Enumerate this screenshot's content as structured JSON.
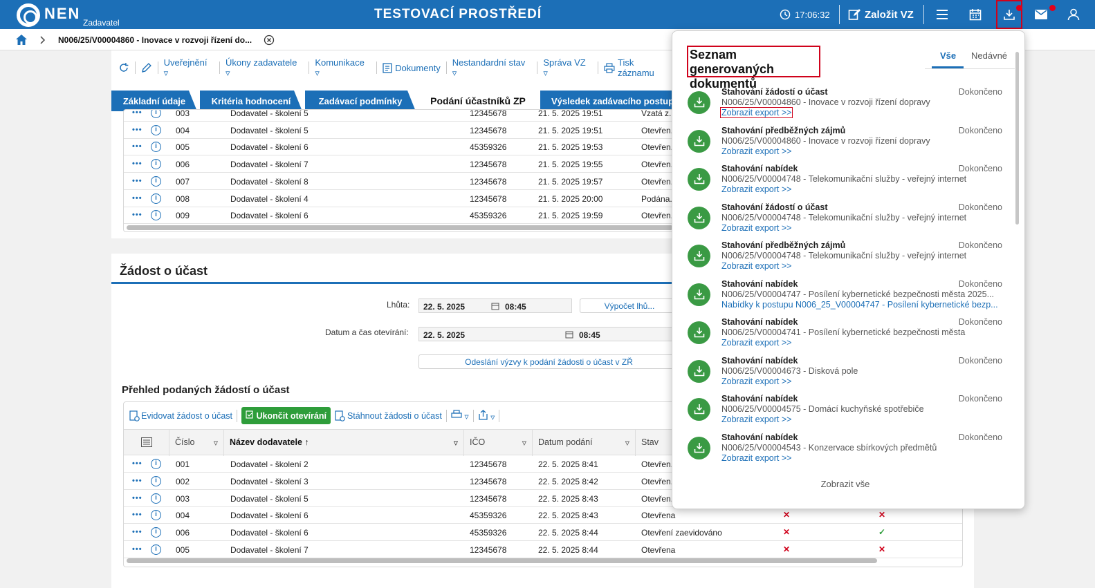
{
  "app": {
    "brand": "NEN",
    "brand_sub": "Zadavatel",
    "env_title": "TESTOVACÍ PROSTŘEDÍ",
    "time": "17:06:32",
    "create_label": "Založit VZ"
  },
  "breadcrumb": {
    "current": "N006/25/V00004860 - Inovace v rozvoji řízení do..."
  },
  "toolbar": {
    "items": [
      "Uveřejnění ▿",
      "Úkony zadavatele ▿",
      "Komunikace ▿",
      "Dokumenty",
      "Nestandardní stav ▿",
      "Správa VZ ▿",
      "Tisk záznamu"
    ]
  },
  "tabs": [
    "Základní údaje",
    "Kritéria hodnocení",
    "Zadávací podmínky",
    "Podání účastníků ZP",
    "Výsledek zadávacího postupu"
  ],
  "grid1": {
    "rows": [
      {
        "num": "003",
        "name": "Dodavatel - školení 5",
        "ico": "12345678",
        "date": "21. 5. 2025 19:51",
        "state": "Vzatá z..."
      },
      {
        "num": "004",
        "name": "Dodavatel - školení 5",
        "ico": "12345678",
        "date": "21. 5. 2025 19:51",
        "state": "Otevřen..."
      },
      {
        "num": "005",
        "name": "Dodavatel - školení 6",
        "ico": "45359326",
        "date": "21. 5. 2025 19:53",
        "state": "Otevřen..."
      },
      {
        "num": "006",
        "name": "Dodavatel - školení 7",
        "ico": "12345678",
        "date": "21. 5. 2025 19:55",
        "state": "Otevřen..."
      },
      {
        "num": "007",
        "name": "Dodavatel - školení 8",
        "ico": "12345678",
        "date": "21. 5. 2025 19:57",
        "state": "Otevřen..."
      },
      {
        "num": "008",
        "name": "Dodavatel - školení 4",
        "ico": "12345678",
        "date": "21. 5. 2025 20:00",
        "state": "Podána..."
      },
      {
        "num": "009",
        "name": "Dodavatel - školení 6",
        "ico": "45359326",
        "date": "21. 5. 2025 19:59",
        "state": "Otevřen..."
      }
    ]
  },
  "section": {
    "title": "Žádost o účast",
    "deadline_label": "Lhůta:",
    "deadline_date": "22. 5. 2025",
    "deadline_time": "08:45",
    "calc_button": "Výpočet lhů...",
    "open_label": "Datum a čas otevírání:",
    "open_date": "22. 5. 2025",
    "open_time": "08:45",
    "send_button": "Odeslání výzvy k podání žádosti o účast v ZŘ"
  },
  "grid2": {
    "title": "Přehled podaných žádostí o účast",
    "tools": {
      "register": "Evidovat žádost o účast",
      "close": "Ukončit otevírání",
      "download": "Stáhnout žádosti o účast"
    },
    "headers": {
      "num": "Číslo",
      "name": "Název dodavatele",
      "ico": "IČO",
      "date": "Datum podání",
      "state": "Stav"
    },
    "rows": [
      {
        "num": "001",
        "name": "Dodavatel - školení 2",
        "ico": "12345678",
        "date": "22. 5. 2025 8:41",
        "state": "Otevřen...",
        "m1": "",
        "m2": ""
      },
      {
        "num": "002",
        "name": "Dodavatel - školení 3",
        "ico": "12345678",
        "date": "22. 5. 2025 8:42",
        "state": "Otevřen...",
        "m1": "",
        "m2": ""
      },
      {
        "num": "003",
        "name": "Dodavatel - školení 5",
        "ico": "12345678",
        "date": "22. 5. 2025 8:43",
        "state": "Otevřen...",
        "m1": "",
        "m2": ""
      },
      {
        "num": "004",
        "name": "Dodavatel - školení 6",
        "ico": "45359326",
        "date": "22. 5. 2025 8:43",
        "state": "Otevřena",
        "m1": "✕",
        "m2": "✕"
      },
      {
        "num": "006",
        "name": "Dodavatel - školení 6",
        "ico": "45359326",
        "date": "22. 5. 2025 8:44",
        "state": "Otevření zaevidováno",
        "m1": "✕",
        "m2": "✓"
      },
      {
        "num": "005",
        "name": "Dodavatel - školení 7",
        "ico": "12345678",
        "date": "22. 5. 2025 8:44",
        "state": "Otevřena",
        "m1": "✕",
        "m2": "✕"
      }
    ]
  },
  "panel": {
    "title": "Seznam generovaných dokumentů",
    "tab_all": "Vše",
    "tab_recent": "Nedávné",
    "show_all": "Zobrazit vše",
    "items": [
      {
        "name": "Stahování žádostí o účast",
        "desc": "N006/25/V00004860 - Inovace v rozvoji řízení dopravy",
        "link": "Zobrazit export >>",
        "status": "Dokončeno"
      },
      {
        "name": "Stahování předběžných zájmů",
        "desc": "N006/25/V00004860 - Inovace v rozvoji řízení dopravy",
        "link": "Zobrazit export >>",
        "status": "Dokončeno"
      },
      {
        "name": "Stahování nabídek",
        "desc": "N006/25/V00004748 - Telekomunikační služby - veřejný internet",
        "link": "Zobrazit export >>",
        "status": "Dokončeno"
      },
      {
        "name": "Stahování žádostí o účast",
        "desc": "N006/25/V00004748 - Telekomunikační služby - veřejný internet",
        "link": "Zobrazit export >>",
        "status": "Dokončeno"
      },
      {
        "name": "Stahování předběžných zájmů",
        "desc": "N006/25/V00004748 - Telekomunikační služby - veřejný internet",
        "link": "Zobrazit export >>",
        "status": "Dokončeno"
      },
      {
        "name": "Stahování nabídek",
        "desc": "N006/25/V00004747 - Posílení kybernetické bezpečnosti města 2025...",
        "link": "Nabídky k postupu N006_25_V00004747 - Posílení kybernetické bezp...",
        "status": "Dokončeno"
      },
      {
        "name": "Stahování nabídek",
        "desc": "N006/25/V00004741 - Posílení kybernetické bezpečnosti města",
        "link": "Zobrazit export >>",
        "status": "Dokončeno"
      },
      {
        "name": "Stahování nabídek",
        "desc": "N006/25/V00004673 - Disková pole",
        "link": "Zobrazit export >>",
        "status": "Dokončeno"
      },
      {
        "name": "Stahování nabídek",
        "desc": "N006/25/V00004575 - Domácí kuchyňské spotřebiče",
        "link": "Zobrazit export >>",
        "status": "Dokončeno"
      },
      {
        "name": "Stahování nabídek",
        "desc": "N006/25/V00004543 - Konzervace sbírkových předmětů",
        "link": "Zobrazit export >>",
        "status": "Dokončeno"
      }
    ]
  },
  "colors": {
    "brand": "#1c6fb7",
    "highlight": "#d0021b",
    "success": "#2e9d3a"
  }
}
